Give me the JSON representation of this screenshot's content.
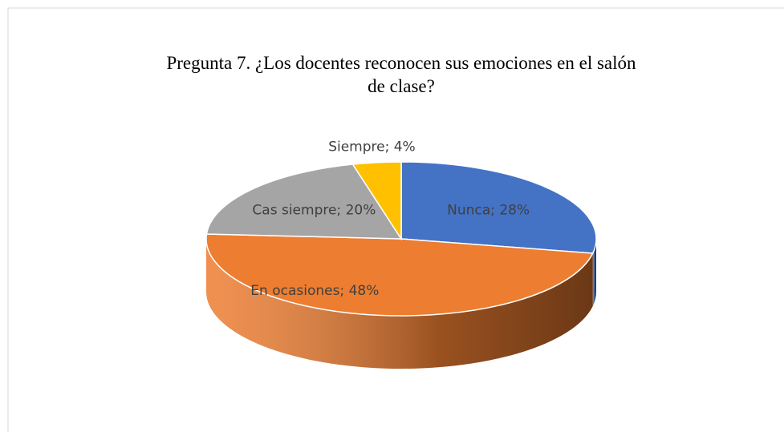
{
  "chart_data": {
    "type": "pie",
    "three_d": true,
    "title": "Pregunta 7. ¿Los docentes reconocen sus emociones en el salón de clase?",
    "categories": [
      "Nunca",
      "En ocasiones",
      "Cas siempre",
      "Siempre"
    ],
    "values": [
      28,
      48,
      20,
      4
    ],
    "value_labels": [
      "Nunca; 28%",
      "En ocasiones; 48%",
      "Cas siempre; 20%",
      "Siempre; 4%"
    ],
    "colors": [
      "#4472c4",
      "#ed7d31",
      "#a5a5a5",
      "#ffc000"
    ]
  }
}
